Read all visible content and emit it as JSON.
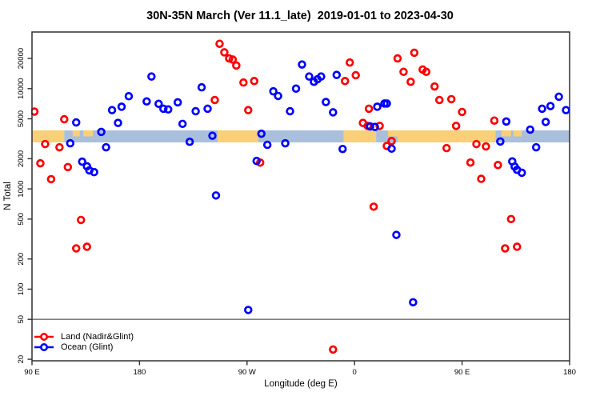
{
  "chart_data": {
    "type": "scatter",
    "title": "30N-35N March (Ver 11.1_late)  2019-01-01 to 2023-04-30",
    "xlabel": "Longitude (deg E)",
    "ylabel": "N Total",
    "x_axis": {
      "range": [
        90,
        540
      ],
      "ticks": [
        90,
        180,
        270,
        360,
        450,
        540
      ],
      "tick_labels": [
        "90 E",
        "180",
        "90 W",
        "0",
        "90 E",
        "180"
      ]
    },
    "y_axis": {
      "scale": "log",
      "range": [
        19.3,
        36700
      ],
      "ticks": [
        20,
        50,
        100,
        200,
        500,
        1000,
        2000,
        5000,
        10000,
        20000
      ],
      "tick_labels": [
        "20",
        "50",
        "100",
        "200",
        "500",
        "1000",
        "2000",
        "5000",
        "10000",
        "20000"
      ]
    },
    "grid": "off",
    "reference_line": {
      "y": 50,
      "color": "#808080"
    },
    "map_strip": {
      "description": "world coastline band 30N-35N drawn across plot near N=3000",
      "land_color": "#F9CF77",
      "ocean_color": "#A9BFDB",
      "segments": [
        {
          "from": 90,
          "to": 117,
          "type": "land"
        },
        {
          "from": 117,
          "to": 245.5,
          "type": "ocean"
        },
        {
          "from": 124,
          "to": 130,
          "type": "land",
          "half": "top"
        },
        {
          "from": 133,
          "to": 141,
          "type": "land",
          "half": "top"
        },
        {
          "from": 245.5,
          "to": 279.5,
          "type": "land"
        },
        {
          "from": 279.5,
          "to": 351,
          "type": "ocean"
        },
        {
          "from": 351,
          "to": 378,
          "type": "land"
        },
        {
          "from": 378,
          "to": 396,
          "type": "ocean"
        },
        {
          "from": 388,
          "to": 396,
          "type": "land",
          "half": "top"
        },
        {
          "from": 396,
          "to": 478,
          "type": "land"
        },
        {
          "from": 478,
          "to": 540,
          "type": "ocean"
        },
        {
          "from": 483,
          "to": 491,
          "type": "land",
          "half": "top"
        },
        {
          "from": 493,
          "to": 500,
          "type": "land",
          "half": "top"
        }
      ]
    },
    "legend_position": "bottom-left",
    "series": [
      {
        "name": "Land (Nadir&Glint)",
        "color": "#FF0000",
        "points": [
          [
            92,
            5900
          ],
          [
            117,
            4950
          ],
          [
            101,
            2800
          ],
          [
            113,
            2600
          ],
          [
            97,
            1800
          ],
          [
            120,
            1650
          ],
          [
            106,
            1250
          ],
          [
            131,
            490
          ],
          [
            127,
            255
          ],
          [
            136,
            265
          ],
          [
            247,
            28000
          ],
          [
            251,
            23000
          ],
          [
            255,
            20000
          ],
          [
            258,
            19500
          ],
          [
            261,
            17000
          ],
          [
            267,
            11500
          ],
          [
            276,
            11900
          ],
          [
            243,
            7700
          ],
          [
            271,
            6100
          ],
          [
            281,
            1830
          ],
          [
            352,
            11900
          ],
          [
            356,
            18200
          ],
          [
            361,
            13600
          ],
          [
            396,
            20000
          ],
          [
            410,
            22800
          ],
          [
            401,
            14700
          ],
          [
            417,
            15500
          ],
          [
            420,
            14700
          ],
          [
            407,
            11700
          ],
          [
            427,
            10500
          ],
          [
            372,
            6300
          ],
          [
            367,
            4550
          ],
          [
            371,
            4250
          ],
          [
            381,
            4250
          ],
          [
            391,
            3000
          ],
          [
            387,
            2680
          ],
          [
            376,
            665
          ],
          [
            342,
            25
          ],
          [
            431,
            7700
          ],
          [
            441,
            7850
          ],
          [
            450,
            5850
          ],
          [
            445,
            4250
          ],
          [
            477,
            4800
          ],
          [
            437,
            2550
          ],
          [
            462,
            2800
          ],
          [
            470,
            2650
          ],
          [
            457,
            1830
          ],
          [
            480,
            1730
          ],
          [
            466,
            1260
          ],
          [
            491,
            500
          ],
          [
            486,
            255
          ],
          [
            496,
            265
          ]
        ]
      },
      {
        "name": "Ocean (Glint)",
        "color": "#0000FF",
        "points": [
          [
            127,
            4600
          ],
          [
            122,
            2850
          ],
          [
            132,
            1870
          ],
          [
            136,
            1680
          ],
          [
            138,
            1530
          ],
          [
            142,
            1470
          ],
          [
            148,
            3700
          ],
          [
            152,
            2600
          ],
          [
            157,
            6100
          ],
          [
            162,
            4550
          ],
          [
            165,
            6600
          ],
          [
            171,
            8400
          ],
          [
            190,
            13200
          ],
          [
            186,
            7450
          ],
          [
            196,
            7050
          ],
          [
            200,
            6300
          ],
          [
            204,
            6200
          ],
          [
            227,
            5950
          ],
          [
            237,
            6300
          ],
          [
            212,
            7300
          ],
          [
            216,
            4450
          ],
          [
            232,
            10300
          ],
          [
            222,
            2950
          ],
          [
            241,
            3390
          ],
          [
            244,
            860
          ],
          [
            271,
            62
          ],
          [
            278,
            1900
          ],
          [
            282,
            3550
          ],
          [
            287,
            2750
          ],
          [
            302,
            2850
          ],
          [
            292,
            9400
          ],
          [
            296,
            8450
          ],
          [
            311,
            10000
          ],
          [
            306,
            5950
          ],
          [
            316,
            17400
          ],
          [
            322,
            13200
          ],
          [
            326,
            11700
          ],
          [
            329,
            12400
          ],
          [
            332,
            13200
          ],
          [
            336,
            7350
          ],
          [
            342,
            5800
          ],
          [
            345,
            13700
          ],
          [
            350,
            2500
          ],
          [
            373,
            4200
          ],
          [
            377,
            4150
          ],
          [
            379,
            6600
          ],
          [
            385,
            7100
          ],
          [
            387,
            7100
          ],
          [
            391,
            2520
          ],
          [
            395,
            348
          ],
          [
            409,
            74
          ],
          [
            482,
            2970
          ],
          [
            487,
            4700
          ],
          [
            507,
            3900
          ],
          [
            512,
            2600
          ],
          [
            492,
            1880
          ],
          [
            494,
            1670
          ],
          [
            496,
            1550
          ],
          [
            500,
            1450
          ],
          [
            517,
            6300
          ],
          [
            524,
            6700
          ],
          [
            531,
            8300
          ],
          [
            537,
            6100
          ],
          [
            520,
            4650
          ]
        ]
      }
    ]
  }
}
